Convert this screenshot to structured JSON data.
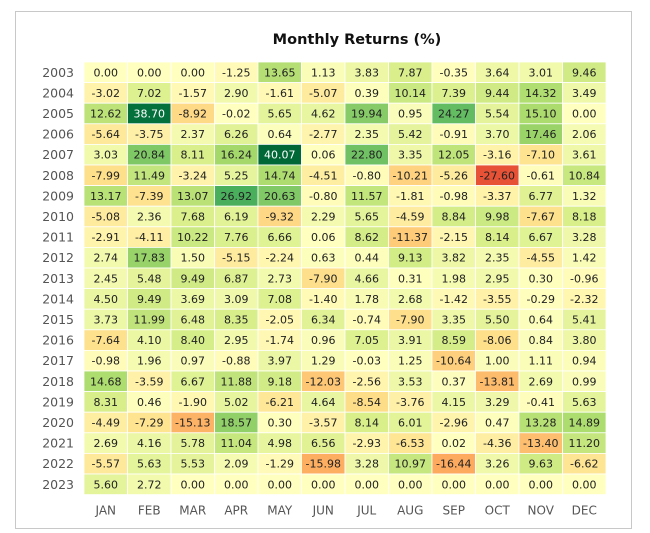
{
  "chart_data": {
    "type": "heatmap",
    "title": "Monthly Returns (%)",
    "xlabel": "",
    "ylabel": "",
    "x": [
      "JAN",
      "FEB",
      "MAR",
      "APR",
      "MAY",
      "JUN",
      "JUL",
      "AUG",
      "SEP",
      "OCT",
      "NOV",
      "DEC"
    ],
    "y": [
      "2003",
      "2004",
      "2005",
      "2006",
      "2007",
      "2008",
      "2009",
      "2010",
      "2011",
      "2012",
      "2013",
      "2014",
      "2015",
      "2016",
      "2017",
      "2018",
      "2019",
      "2020",
      "2021",
      "2022",
      "2023"
    ],
    "values": [
      [
        0.0,
        0.0,
        0.0,
        -1.25,
        13.65,
        1.13,
        3.83,
        7.87,
        -0.35,
        3.64,
        3.01,
        9.46
      ],
      [
        -3.02,
        7.02,
        -1.57,
        2.9,
        -1.61,
        -5.07,
        0.39,
        10.14,
        7.39,
        9.44,
        14.32,
        3.49
      ],
      [
        12.62,
        38.7,
        -8.92,
        -0.02,
        5.65,
        4.62,
        19.94,
        0.95,
        24.27,
        5.54,
        15.1,
        0.0
      ],
      [
        -5.64,
        -3.75,
        2.37,
        6.26,
        0.64,
        -2.77,
        2.35,
        5.42,
        -0.91,
        3.7,
        17.46,
        2.06
      ],
      [
        3.03,
        20.84,
        8.11,
        16.24,
        40.07,
        0.06,
        22.8,
        3.35,
        12.05,
        -3.16,
        -7.1,
        3.61
      ],
      [
        -7.99,
        11.49,
        -3.24,
        5.25,
        14.74,
        -4.51,
        -0.8,
        -10.21,
        -5.26,
        -27.6,
        -0.61,
        10.84
      ],
      [
        13.17,
        -7.39,
        13.07,
        26.92,
        20.63,
        -0.8,
        11.57,
        -1.81,
        -0.98,
        -3.37,
        6.77,
        1.32
      ],
      [
        -5.08,
        2.36,
        7.68,
        6.19,
        -9.32,
        2.29,
        5.65,
        -4.59,
        8.84,
        9.98,
        -7.67,
        8.18
      ],
      [
        -2.91,
        -4.11,
        10.22,
        7.76,
        6.66,
        0.06,
        8.62,
        -11.37,
        -2.15,
        8.14,
        6.67,
        3.28
      ],
      [
        2.74,
        17.83,
        1.5,
        -5.15,
        -2.24,
        0.63,
        0.44,
        9.13,
        3.82,
        2.35,
        -4.55,
        1.42
      ],
      [
        2.45,
        5.48,
        9.49,
        6.87,
        2.73,
        -7.9,
        4.66,
        0.31,
        1.98,
        2.95,
        0.3,
        -0.96
      ],
      [
        4.5,
        9.49,
        3.69,
        3.09,
        7.08,
        -1.4,
        1.78,
        2.68,
        -1.42,
        -3.55,
        -0.29,
        -2.32
      ],
      [
        3.73,
        11.99,
        6.48,
        8.35,
        -2.05,
        6.34,
        -0.74,
        -7.9,
        3.35,
        5.5,
        0.64,
        5.41
      ],
      [
        -7.64,
        4.1,
        8.4,
        2.95,
        -1.74,
        0.96,
        7.05,
        3.91,
        8.59,
        -8.06,
        0.84,
        3.8
      ],
      [
        -0.98,
        1.96,
        0.97,
        -0.88,
        3.97,
        1.29,
        -0.03,
        1.25,
        -10.64,
        1.0,
        1.11,
        0.94
      ],
      [
        14.68,
        -3.59,
        6.67,
        11.88,
        9.18,
        -12.03,
        -2.56,
        3.53,
        0.37,
        -13.81,
        2.69,
        0.99
      ],
      [
        8.31,
        0.46,
        -1.9,
        5.02,
        -6.21,
        4.64,
        -8.54,
        -3.76,
        4.15,
        3.29,
        -0.41,
        5.63
      ],
      [
        -4.49,
        -7.29,
        -15.13,
        18.57,
        0.3,
        -3.57,
        8.14,
        6.01,
        -2.96,
        0.47,
        13.28,
        14.89
      ],
      [
        2.69,
        4.16,
        5.78,
        11.04,
        4.98,
        6.56,
        -2.93,
        -6.53,
        0.02,
        -4.36,
        -13.4,
        11.2
      ],
      [
        -5.57,
        5.63,
        5.53,
        2.09,
        -1.29,
        -15.98,
        3.28,
        10.97,
        -16.44,
        3.26,
        9.63,
        -6.62
      ],
      [
        5.6,
        2.72,
        0.0,
        0.0,
        0.0,
        0.0,
        0.0,
        0.0,
        0.0,
        0.0,
        0.0,
        0.0
      ]
    ],
    "value_format": "2 decimals",
    "colormap": "RdYlGn",
    "color_range": [
      -40,
      40
    ],
    "grid": false,
    "legend": "none"
  }
}
